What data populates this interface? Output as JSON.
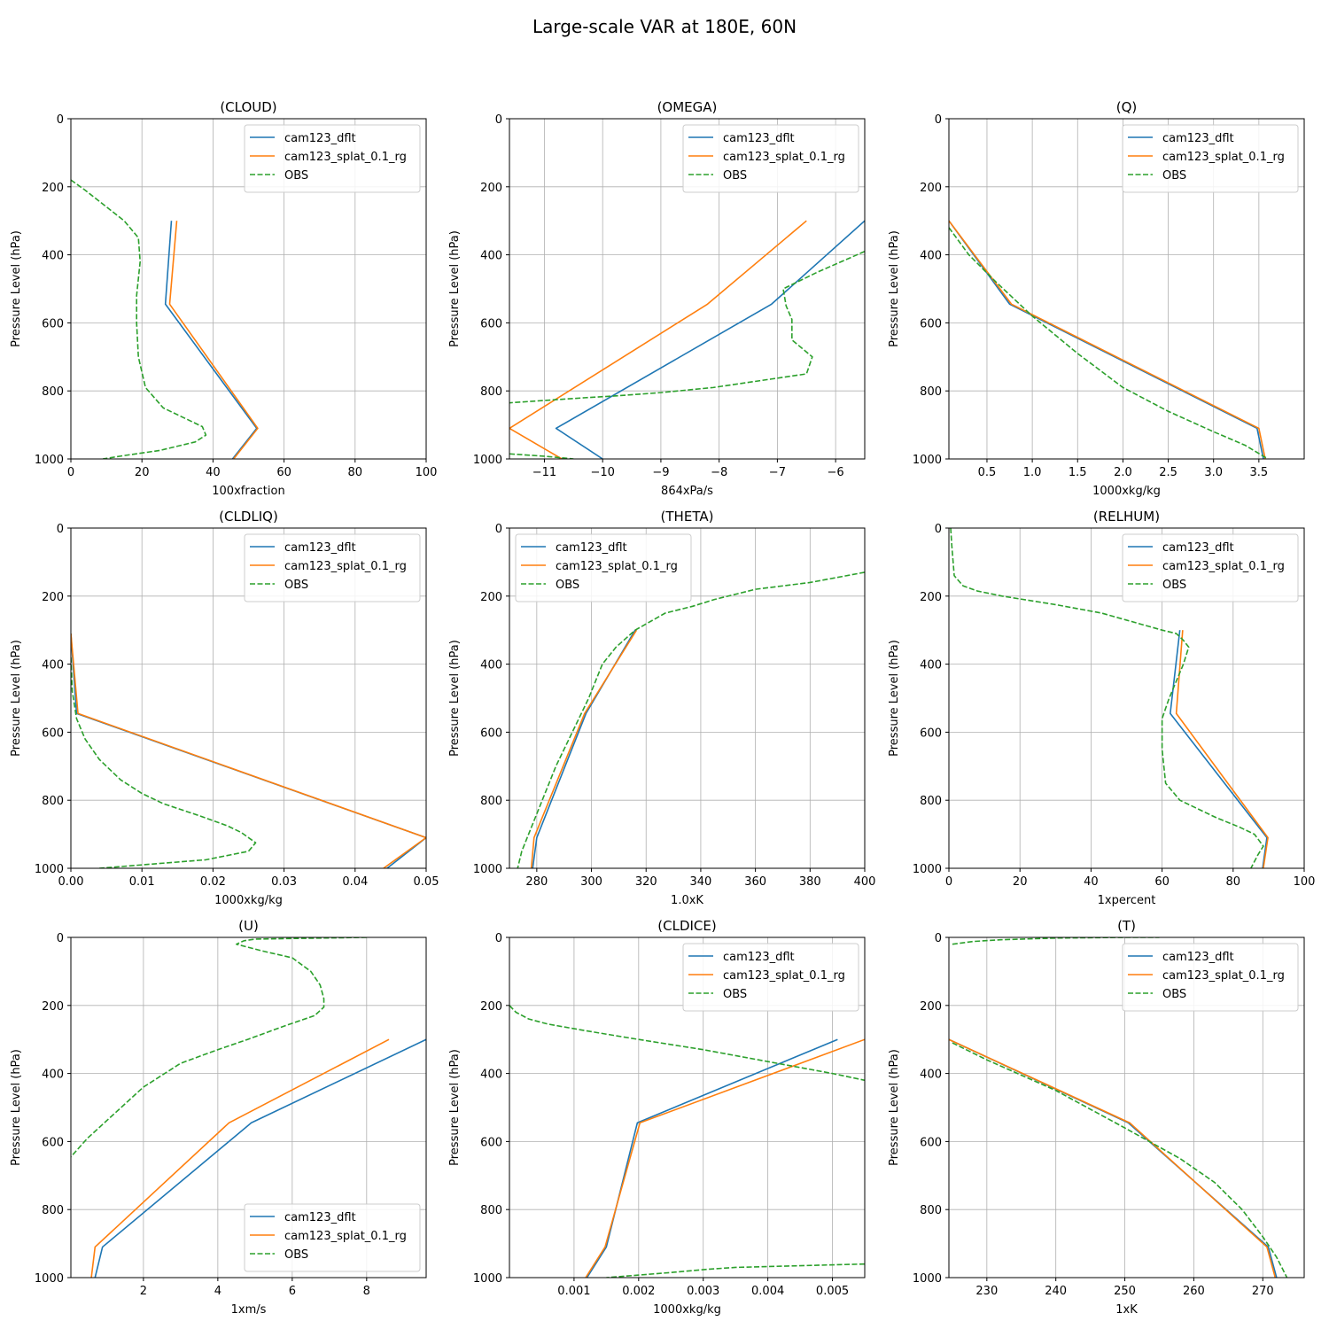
{
  "figure": {
    "title": "Large-scale VAR at 180E, 60N"
  },
  "legend_labels": [
    "cam123_dflt",
    "cam123_splat_0.1_rg",
    "OBS"
  ],
  "colors": {
    "cam123_dflt": "#1f77b4",
    "cam123_splat_0.1_rg": "#ff7f0e",
    "OBS": "#2ca02c",
    "grid": "#b0b0b0"
  },
  "chart_data": [
    {
      "type": "line",
      "title": "(CLOUD)",
      "xlabel": "100xfraction",
      "ylabel": "Pressure Level (hPa)",
      "xlim": [
        0,
        100
      ],
      "ylim": [
        1000,
        0
      ],
      "xticks": [
        0,
        20,
        40,
        60,
        80,
        100
      ],
      "yticks": [
        0,
        200,
        400,
        600,
        800,
        1000
      ],
      "legend": "top-right",
      "grid": true,
      "series": [
        {
          "name": "cam123_dflt",
          "style": "solid",
          "x": [
            28.3,
            26.6,
            52.3,
            45.5
          ],
          "y": [
            300,
            545,
            910,
            1000
          ]
        },
        {
          "name": "cam123_splat_0.1_rg",
          "style": "solid",
          "x": [
            29.8,
            27.8,
            52.6,
            45.8
          ],
          "y": [
            300,
            545,
            910,
            1000
          ]
        },
        {
          "name": "OBS",
          "style": "dashed",
          "x": [
            0,
            4,
            15,
            19,
            19.5,
            18.5,
            18.5,
            19,
            21,
            26,
            32,
            37,
            38,
            35,
            25,
            15,
            9
          ],
          "y": [
            180,
            210,
            300,
            350,
            420,
            520,
            600,
            700,
            790,
            850,
            880,
            905,
            930,
            950,
            975,
            990,
            1000
          ]
        }
      ]
    },
    {
      "type": "line",
      "title": "(OMEGA)",
      "xlabel": "864xPa/s",
      "ylabel": "Pressure Level (hPa)",
      "xlim": [
        -11.6,
        -5.5
      ],
      "ylim": [
        1000,
        0
      ],
      "xticks": [
        -11,
        -10,
        -9,
        -8,
        -7,
        -6
      ],
      "yticks": [
        0,
        200,
        400,
        600,
        800,
        1000
      ],
      "legend": "top-right",
      "grid": true,
      "series": [
        {
          "name": "cam123_dflt",
          "style": "solid",
          "x": [
            -5.5,
            -7.1,
            -10.8,
            -10.0
          ],
          "y": [
            300,
            545,
            910,
            1000
          ]
        },
        {
          "name": "cam123_splat_0.1_rg",
          "style": "solid",
          "x": [
            -6.5,
            -8.2,
            -11.6,
            -10.7
          ],
          "y": [
            300,
            545,
            910,
            1000
          ]
        },
        {
          "name": "OBS",
          "style": "dashed",
          "x": [
            -5.5,
            -6.3,
            -6.9,
            -6.85,
            -6.75,
            -6.75,
            -6.4,
            -6.5,
            -7.1,
            -8.1,
            -9.0,
            -9.8,
            -10.3,
            -11.6
          ],
          "y": [
            390,
            450,
            500,
            550,
            590,
            650,
            700,
            750,
            765,
            790,
            805,
            815,
            820,
            835
          ]
        },
        {
          "name": "OBS",
          "style": "dashed",
          "x": [
            -11.6,
            -11.0,
            -10.5
          ],
          "y": [
            985,
            992,
            1000
          ]
        }
      ]
    },
    {
      "type": "line",
      "title": "(Q)",
      "xlabel": "1000xkg/kg",
      "ylabel": "Pressure Level (hPa)",
      "xlim": [
        0.08,
        4.0
      ],
      "ylim": [
        1000,
        0
      ],
      "xticks": [
        0.5,
        1.0,
        1.5,
        2.0,
        2.5,
        3.0,
        3.5
      ],
      "yticks": [
        0,
        200,
        400,
        600,
        800,
        1000
      ],
      "legend": "top-right",
      "grid": true,
      "series": [
        {
          "name": "cam123_dflt",
          "style": "solid",
          "x": [
            0.08,
            0.75,
            3.48,
            3.55
          ],
          "y": [
            300,
            545,
            910,
            1000
          ]
        },
        {
          "name": "cam123_splat_0.1_rg",
          "style": "solid",
          "x": [
            0.08,
            0.77,
            3.5,
            3.57
          ],
          "y": [
            300,
            545,
            910,
            1000
          ]
        },
        {
          "name": "OBS",
          "style": "dashed",
          "x": [
            0.08,
            0.3,
            0.6,
            1.0,
            1.5,
            2.0,
            2.5,
            3.0,
            3.35,
            3.6
          ],
          "y": [
            320,
            400,
            480,
            580,
            690,
            790,
            860,
            920,
            960,
            1000
          ]
        }
      ]
    },
    {
      "type": "line",
      "title": "(CLDLIQ)",
      "xlabel": "1000xkg/kg",
      "ylabel": "Pressure Level (hPa)",
      "xlim": [
        0,
        0.05
      ],
      "ylim": [
        1000,
        0
      ],
      "xticks": [
        0.0,
        0.01,
        0.02,
        0.03,
        0.04,
        0.05
      ],
      "yticks": [
        0,
        200,
        400,
        600,
        800,
        1000
      ],
      "legend": "top-right",
      "grid": true,
      "series": [
        {
          "name": "cam123_dflt",
          "style": "solid",
          "x": [
            0,
            0.0008,
            0.05,
            0.0445
          ],
          "y": [
            310,
            545,
            910,
            1000
          ]
        },
        {
          "name": "cam123_splat_0.1_rg",
          "style": "solid",
          "x": [
            0,
            0.001,
            0.05,
            0.044
          ],
          "y": [
            310,
            545,
            910,
            1000
          ]
        },
        {
          "name": "OBS",
          "style": "dashed",
          "x": [
            0,
            0.0002,
            0.0008,
            0.002,
            0.004,
            0.007,
            0.01,
            0.013,
            0.018,
            0.022,
            0.024,
            0.026,
            0.025,
            0.019,
            0.01,
            0.004
          ],
          "y": [
            380,
            480,
            560,
            620,
            680,
            740,
            780,
            810,
            845,
            875,
            895,
            925,
            950,
            975,
            990,
            1000
          ]
        }
      ]
    },
    {
      "type": "line",
      "title": "(THETA)",
      "xlabel": "1.0xK",
      "ylabel": "Pressure Level (hPa)",
      "xlim": [
        270,
        400
      ],
      "ylim": [
        1000,
        0
      ],
      "xticks": [
        280,
        300,
        320,
        340,
        360,
        380,
        400
      ],
      "yticks": [
        0,
        200,
        400,
        600,
        800,
        1000
      ],
      "legend": "top-left",
      "grid": true,
      "series": [
        {
          "name": "cam123_dflt",
          "style": "solid",
          "x": [
            316,
            298,
            280,
            278.5
          ],
          "y": [
            300,
            545,
            910,
            1000
          ]
        },
        {
          "name": "cam123_splat_0.1_rg",
          "style": "solid",
          "x": [
            316.5,
            297.5,
            279,
            278
          ],
          "y": [
            300,
            545,
            910,
            1000
          ]
        },
        {
          "name": "OBS",
          "style": "dashed",
          "x": [
            400,
            380,
            360,
            345,
            337,
            327,
            316,
            309,
            304,
            299,
            293,
            287,
            282,
            277,
            274.5,
            273
          ],
          "y": [
            130,
            160,
            180,
            210,
            230,
            250,
            300,
            350,
            400,
            500,
            600,
            700,
            800,
            900,
            950,
            1000
          ]
        }
      ]
    },
    {
      "type": "line",
      "title": "(RELHUM)",
      "xlabel": "1xpercent",
      "ylabel": "Pressure Level (hPa)",
      "xlim": [
        0,
        100
      ],
      "ylim": [
        1000,
        0
      ],
      "xticks": [
        0,
        20,
        40,
        60,
        80,
        100
      ],
      "yticks": [
        0,
        200,
        400,
        600,
        800,
        1000
      ],
      "legend": "top-right",
      "grid": true,
      "series": [
        {
          "name": "cam123_dflt",
          "style": "solid",
          "x": [
            65,
            62.3,
            89.5,
            88.3
          ],
          "y": [
            300,
            545,
            910,
            1000
          ]
        },
        {
          "name": "cam123_splat_0.1_rg",
          "style": "solid",
          "x": [
            65.8,
            64,
            89.8,
            88.5
          ],
          "y": [
            300,
            545,
            910,
            1000
          ]
        },
        {
          "name": "OBS",
          "style": "dashed",
          "x": [
            0.5,
            0.8,
            1.5,
            4,
            8,
            15,
            30,
            43,
            60,
            64,
            66,
            67.5,
            66,
            62,
            60,
            60,
            61,
            65,
            75,
            82,
            86,
            88.5,
            87,
            85
          ],
          "y": [
            0,
            50,
            140,
            170,
            185,
            200,
            225,
            250,
            300,
            310,
            330,
            350,
            400,
            500,
            560,
            650,
            750,
            800,
            850,
            880,
            900,
            935,
            960,
            1000
          ]
        }
      ]
    },
    {
      "type": "line",
      "title": "(U)",
      "xlabel": "1xm/s",
      "ylabel": "Pressure Level (hPa)",
      "xlim": [
        0.05,
        9.6
      ],
      "ylim": [
        1000,
        0
      ],
      "xticks": [
        2,
        4,
        6,
        8
      ],
      "yticks": [
        0,
        200,
        400,
        600,
        800,
        1000
      ],
      "legend": "bottom-right",
      "grid": true,
      "series": [
        {
          "name": "cam123_dflt",
          "style": "solid",
          "x": [
            9.6,
            4.9,
            0.9,
            0.7
          ],
          "y": [
            300,
            545,
            910,
            1000
          ]
        },
        {
          "name": "cam123_splat_0.1_rg",
          "style": "solid",
          "x": [
            8.6,
            4.3,
            0.7,
            0.6
          ],
          "y": [
            300,
            545,
            910,
            1000
          ]
        },
        {
          "name": "OBS",
          "style": "dashed",
          "x": [
            8,
            5,
            4.7,
            4.5,
            5.2,
            6.0,
            6.5,
            6.75,
            6.85,
            6.85,
            6.6,
            5.8,
            4.8,
            4.0,
            3.0,
            2.0,
            1.2,
            0.5,
            0.05
          ],
          "y": [
            0,
            5,
            10,
            20,
            40,
            60,
            100,
            140,
            180,
            205,
            230,
            260,
            300,
            330,
            370,
            440,
            520,
            590,
            645
          ]
        }
      ]
    },
    {
      "type": "line",
      "title": "(CLDICE)",
      "xlabel": "1000xkg/kg",
      "ylabel": "Pressure Level (hPa)",
      "xlim": [
        0.0,
        0.0055
      ],
      "ylim": [
        1000,
        0
      ],
      "xticks": [
        0.001,
        0.002,
        0.003,
        0.004,
        0.005
      ],
      "yticks": [
        0,
        200,
        400,
        600,
        800,
        1000
      ],
      "legend": "top-right",
      "grid": true,
      "series": [
        {
          "name": "cam123_dflt",
          "style": "solid",
          "x": [
            0.00508,
            0.00198,
            0.0015,
            0.0012
          ],
          "y": [
            300,
            545,
            910,
            1000
          ]
        },
        {
          "name": "cam123_splat_0.1_rg",
          "style": "solid",
          "x": [
            0.0055,
            0.00202,
            0.00148,
            0.00118
          ],
          "y": [
            300,
            545,
            910,
            1000
          ]
        },
        {
          "name": "OBS",
          "style": "dashed",
          "x": [
            0,
            0.0001,
            0.0003,
            0.0006,
            0.0012,
            0.002,
            0.003,
            0.004,
            0.005,
            0.0055
          ],
          "y": [
            200,
            220,
            240,
            255,
            275,
            300,
            330,
            365,
            400,
            420
          ]
        },
        {
          "name": "OBS",
          "style": "dashed",
          "x": [
            0.0055,
            0.0045,
            0.0035,
            0.0031,
            0.0025,
            0.0015
          ],
          "y": [
            960,
            965,
            970,
            975,
            985,
            1000
          ]
        }
      ]
    },
    {
      "type": "line",
      "title": "(T)",
      "xlabel": "1xK",
      "ylabel": "Pressure Level (hPa)",
      "xlim": [
        224.5,
        276
      ],
      "ylim": [
        1000,
        0
      ],
      "xticks": [
        230,
        240,
        250,
        260,
        270
      ],
      "yticks": [
        0,
        200,
        400,
        600,
        800,
        1000
      ],
      "legend": "top-right",
      "grid": true,
      "series": [
        {
          "name": "cam123_dflt",
          "style": "solid",
          "x": [
            224.5,
            250.5,
            270.8,
            272
          ],
          "y": [
            300,
            545,
            910,
            1000
          ]
        },
        {
          "name": "cam123_splat_0.1_rg",
          "style": "solid",
          "x": [
            224.5,
            250.7,
            270.6,
            271.8
          ],
          "y": [
            300,
            545,
            910,
            1000
          ]
        },
        {
          "name": "OBS",
          "style": "dashed",
          "x": [
            225,
            230,
            240,
            250,
            258,
            263,
            267,
            270,
            272,
            273.5
          ],
          "y": [
            310,
            360,
            450,
            560,
            650,
            720,
            800,
            880,
            940,
            1000
          ]
        },
        {
          "name": "OBS",
          "style": "dashed",
          "x": [
            225,
            228,
            232,
            240,
            250,
            255
          ],
          "y": [
            20,
            12,
            7,
            2,
            0,
            0
          ]
        }
      ]
    }
  ]
}
